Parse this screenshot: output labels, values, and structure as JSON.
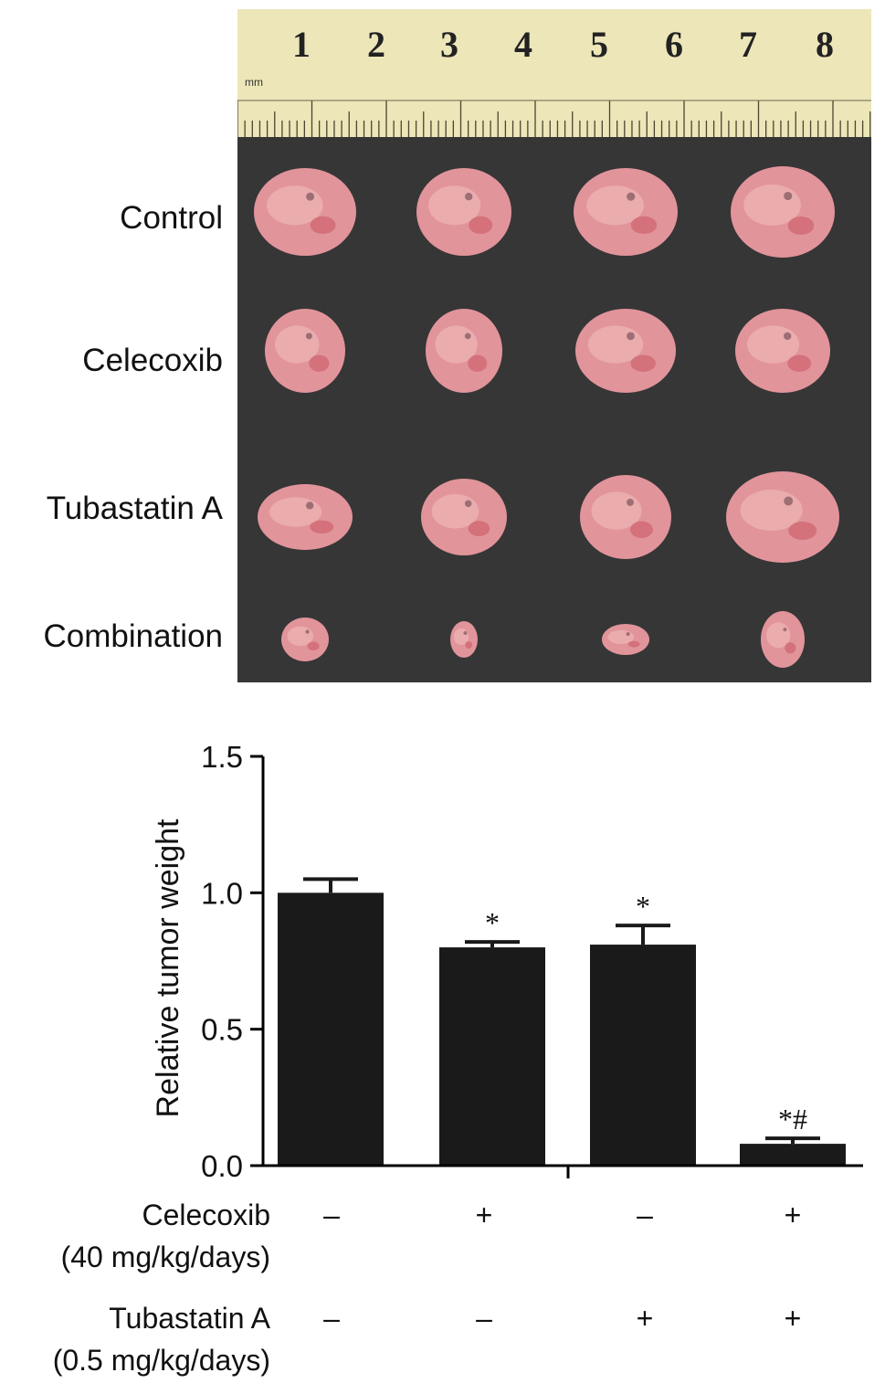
{
  "photo": {
    "ruler_numbers": [
      "1",
      "2",
      "3",
      "4",
      "5",
      "6",
      "7",
      "8"
    ],
    "ruler_unit": "mm",
    "row_labels": [
      "Control",
      "Celecoxib",
      "Tubastatin A",
      "Combination"
    ],
    "colors": {
      "ruler": "#ece6b8",
      "board": "#363636",
      "tumor": "#e2949b"
    }
  },
  "chart_data": {
    "type": "bar",
    "ylabel": "Relative tumor weight",
    "ylim": [
      0,
      1.5
    ],
    "yticks": [
      "0.0",
      "0.5",
      "1.0",
      "1.5"
    ],
    "categories": [
      "Control",
      "Celecoxib",
      "Tubastatin A",
      "Combination"
    ],
    "values": [
      1.0,
      0.8,
      0.81,
      0.08
    ],
    "errors": [
      0.05,
      0.02,
      0.07,
      0.02
    ],
    "annotations": [
      "",
      "*",
      "*",
      "*#"
    ],
    "bar_color": "#1a1a1a"
  },
  "conditions": [
    {
      "label": "Celecoxib",
      "sublabel": "(40 mg/kg/days)",
      "signs": [
        "–",
        "+",
        "–",
        "+"
      ]
    },
    {
      "label": "Tubastatin A",
      "sublabel": "(0.5 mg/kg/days)",
      "signs": [
        "–",
        "–",
        "+",
        "+"
      ]
    }
  ]
}
